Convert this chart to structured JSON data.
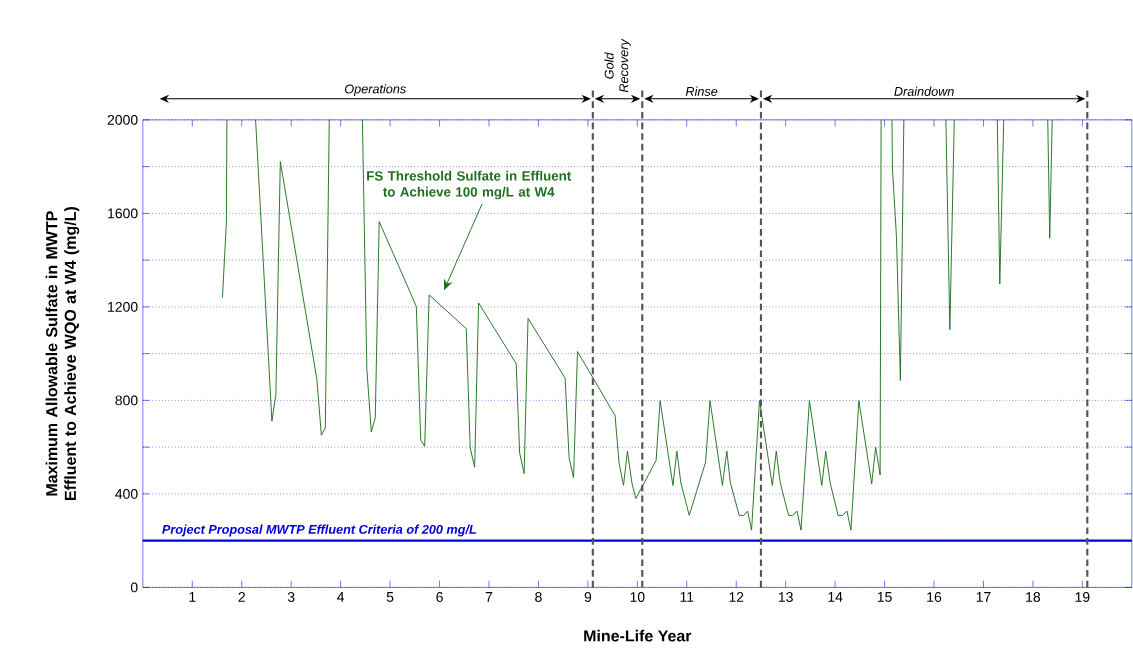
{
  "chart_data": {
    "type": "line",
    "xlabel": "Mine-Life Year",
    "ylabel": "Maximum Allowable Sulfate in MWTP Effluent to Achieve WQO at W4 (mg/L)",
    "xlim": [
      0,
      20
    ],
    "ylim": [
      0,
      2000
    ],
    "xticks": [
      1,
      2,
      3,
      4,
      5,
      6,
      7,
      8,
      9,
      10,
      11,
      12,
      13,
      14,
      15,
      16,
      17,
      18,
      19
    ],
    "yticks": [
      0,
      {
        "value": 200,
        "label": null
      },
      400,
      {
        "value": 600,
        "label": null
      },
      800,
      {
        "value": 1000,
        "label": null
      },
      1200,
      {
        "value": 1400,
        "label": null
      },
      1600,
      {
        "value": 1800,
        "label": null
      },
      2000
    ],
    "grid": "y",
    "marker": "none",
    "series": [
      {
        "name": "FS Threshold Sulfate in Effluent to Achieve 100 mg/L at W4",
        "color": "#1e6e1e",
        "x": [
          1.61,
          1.69,
          1.7,
          2.0,
          2.28,
          2.61,
          2.69,
          2.78,
          3.52,
          3.61,
          3.69,
          3.77,
          4.1,
          4.44,
          4.53,
          4.62,
          4.7,
          4.78,
          5.53,
          5.62,
          5.7,
          5.79,
          6.54,
          6.62,
          6.71,
          6.79,
          7.55,
          7.62,
          7.71,
          7.79,
          8.54,
          8.62,
          8.71,
          8.79,
          9.55,
          9.63,
          9.72,
          9.8,
          9.89,
          9.97,
          10.38,
          10.46,
          10.72,
          10.8,
          10.88,
          11.05,
          11.38,
          11.47,
          11.72,
          11.81,
          11.88,
          12.06,
          12.15,
          12.23,
          12.31,
          12.47,
          12.73,
          12.81,
          12.89,
          13.06,
          13.14,
          13.23,
          13.31,
          13.48,
          13.73,
          13.81,
          13.9,
          14.06,
          14.15,
          14.24,
          14.32,
          14.48,
          14.74,
          14.82,
          14.91,
          14.93,
          15.0,
          15.15,
          15.16,
          15.24,
          15.32,
          15.39,
          15.8,
          16.24,
          16.32,
          16.41,
          16.8,
          17.28,
          17.33,
          17.41,
          17.8,
          18.3,
          18.34,
          18.39
        ],
        "values": [
          1240,
          1565,
          2000,
          null,
          2000,
          711,
          825,
          1822,
          889,
          651,
          682,
          2000,
          null,
          2000,
          932,
          665,
          725,
          1565,
          1202,
          630,
          604,
          1251,
          1107,
          597,
          514,
          1217,
          957,
          575,
          487,
          1151,
          895,
          554,
          469,
          1009,
          735,
          533,
          437,
          583,
          447,
          380,
          543,
          799,
          436,
          583,
          447,
          308,
          536,
          799,
          436,
          583,
          449,
          308,
          308,
          326,
          245,
          799,
          436,
          583,
          447,
          308,
          308,
          326,
          245,
          799,
          436,
          582,
          447,
          308,
          308,
          326,
          245,
          799,
          443,
          600,
          481,
          2000,
          null,
          2000,
          1790,
          1501,
          885,
          2000,
          null,
          2000,
          1103,
          2000,
          null,
          2000,
          1298,
          2000,
          null,
          2000,
          1494,
          2000
        ]
      }
    ],
    "ref_lines": [
      {
        "axis": "y",
        "value": 200,
        "label": "Project Proposal MWTP Effluent Criteria of 200 mg/L",
        "color": "#0000dd",
        "line_style": "solid"
      },
      {
        "axis": "x",
        "value": 9.1,
        "color": "#555555",
        "line_style": "dashed"
      },
      {
        "axis": "x",
        "value": 10.1,
        "color": "#555555",
        "line_style": "dashed"
      },
      {
        "axis": "x",
        "value": 12.5,
        "color": "#555555",
        "line_style": "dashed"
      },
      {
        "axis": "x",
        "value": 19.1,
        "color": "#555555",
        "line_style": "dashed"
      }
    ],
    "annotations": [
      "Operations",
      "Gold Recovery",
      "Rinse",
      "Draindown"
    ]
  }
}
